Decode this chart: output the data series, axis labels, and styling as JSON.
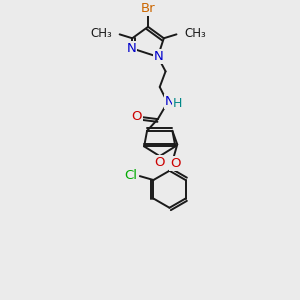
{
  "background_color": "#ebebeb",
  "bond_color": "#1a1a1a",
  "atoms": {
    "Br": {
      "color": "#cc6600"
    },
    "N": {
      "color": "#0000cc"
    },
    "O": {
      "color": "#cc0000"
    },
    "Cl": {
      "color": "#00aa00"
    },
    "H": {
      "color": "#008888"
    }
  },
  "figsize": [
    3.0,
    3.0
  ],
  "dpi": 100,
  "lw": 1.4,
  "fs": 9.5
}
